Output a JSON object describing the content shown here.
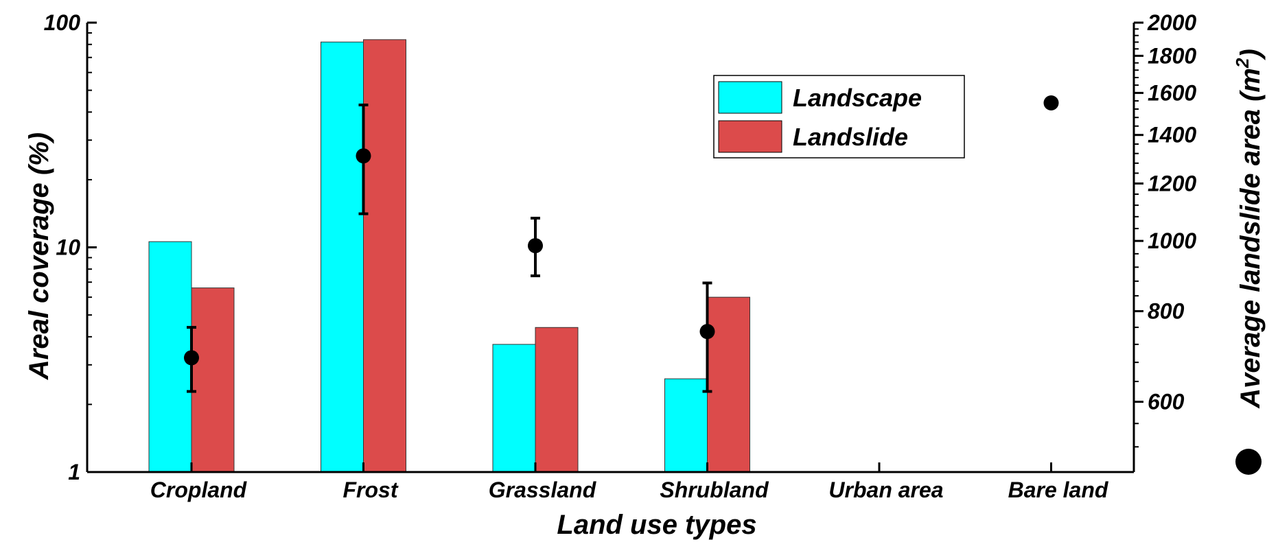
{
  "chart_data": {
    "type": "bar",
    "xlabel": "Land use types",
    "ylabel": "Areal coverage (%)",
    "y2label_prefix": "Average landslide area (m",
    "y2label_sup": "2",
    "y2label_suffix": ")",
    "yscale": "log",
    "ylim": [
      1,
      100
    ],
    "yticks": [
      1,
      10,
      100
    ],
    "ytick_labels": [
      "1",
      "10",
      "100"
    ],
    "y2scale": "log",
    "y2lim": [
      480,
      2000
    ],
    "y2ticks": [
      600,
      800,
      1000,
      1200,
      1400,
      1600,
      1800,
      2000
    ],
    "y2tick_labels": [
      "600",
      "800",
      "1000",
      "1200",
      "1400",
      "1600",
      "1800",
      "2000"
    ],
    "categories": [
      "Cropland",
      "Frost",
      "Grassland",
      "Shrubland",
      "Urban area",
      "Bare land"
    ],
    "series": [
      {
        "name": "Landscape",
        "color": "#00FFFF",
        "values": [
          10.6,
          82,
          3.7,
          2.6,
          null,
          null
        ]
      },
      {
        "name": "Landslide",
        "color": "#DC4B4B",
        "values": [
          6.6,
          84,
          4.4,
          6.0,
          null,
          null
        ]
      }
    ],
    "points_series": {
      "name": "Average landslide area",
      "color": "#000000",
      "values": [
        690,
        1310,
        985,
        750,
        null,
        1550
      ],
      "err_low": [
        620,
        1090,
        895,
        620,
        null,
        null
      ],
      "err_high": [
        760,
        1540,
        1075,
        875,
        null,
        null
      ]
    },
    "legend": {
      "position": "top-center",
      "entries": [
        "Landscape",
        "Landslide"
      ]
    }
  }
}
